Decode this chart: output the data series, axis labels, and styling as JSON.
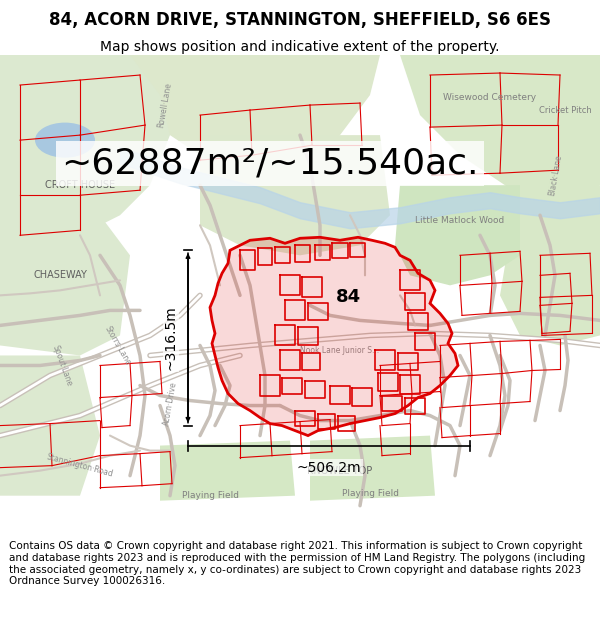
{
  "title_line1": "84, ACORN DRIVE, STANNINGTON, SHEFFIELD, S6 6ES",
  "title_line2": "Map shows position and indicative extent of the property.",
  "area_text": "~62887m²/~15.540ac.",
  "label_84": "84",
  "dim_horizontal": "~506.2m",
  "dim_vertical": "~316.5m",
  "footer_text": "Contains OS data © Crown copyright and database right 2021. This information is subject to Crown copyright and database rights 2023 and is reproduced with the permission of HM Land Registry. The polygons (including the associated geometry, namely x, y co-ordinates) are subject to Crown copyright and database rights 2023 Ordnance Survey 100026316.",
  "bg_color": "#ffffff",
  "map_bg": "#f8f4ef",
  "title_fontsize": 12,
  "subtitle_fontsize": 10,
  "area_fontsize": 26,
  "footer_fontsize": 7.5,
  "dim_fontsize": 10,
  "label_fontsize": 13
}
